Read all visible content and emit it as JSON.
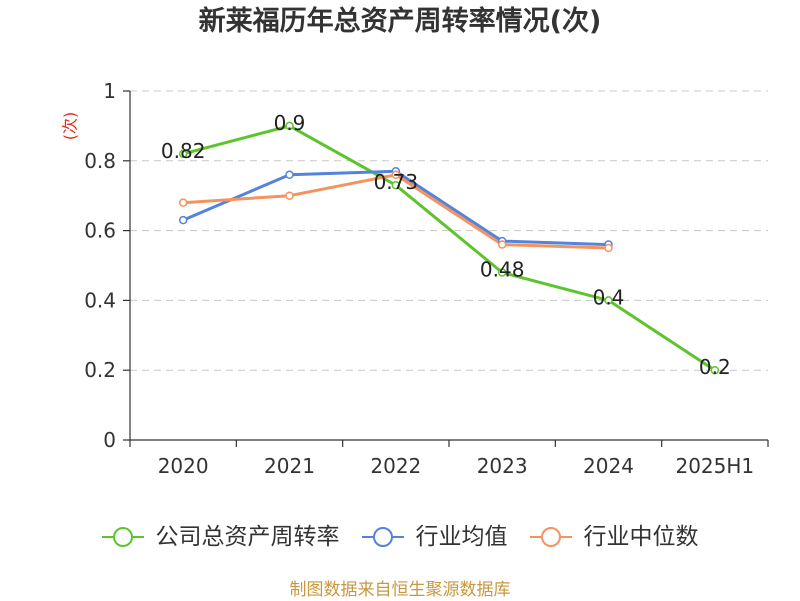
{
  "chart_data": {
    "type": "line",
    "title": "新莱福历年总资产周转率情况(次)",
    "ylabel": "(次)",
    "categories": [
      "2020",
      "2021",
      "2022",
      "2023",
      "2024",
      "2025H1"
    ],
    "ylim": [
      0,
      1
    ],
    "yticks": [
      0,
      0.2,
      0.4,
      0.6,
      0.8,
      1
    ],
    "grid": true,
    "legend": "bottom",
    "series": [
      {
        "name": "公司总资产周转率",
        "color": "#5ec42e",
        "show_labels": true,
        "values": [
          0.82,
          0.9,
          0.73,
          0.48,
          0.4,
          0.2
        ]
      },
      {
        "name": "行业均值",
        "color": "#5383dc",
        "show_labels": false,
        "values": [
          0.63,
          0.76,
          0.77,
          0.57,
          0.56,
          null
        ]
      },
      {
        "name": "行业中位数",
        "color": "#f5935f",
        "show_labels": false,
        "values": [
          0.68,
          0.7,
          0.76,
          0.56,
          0.55,
          null
        ]
      }
    ]
  },
  "source_note": "制图数据来自恒生聚源数据库",
  "colors": {
    "title": "#333333",
    "ylabel": "#e8281c",
    "source_note": "#c9973f",
    "axis": "#333333",
    "grid": "#c8c8c8",
    "label": "#222222"
  }
}
